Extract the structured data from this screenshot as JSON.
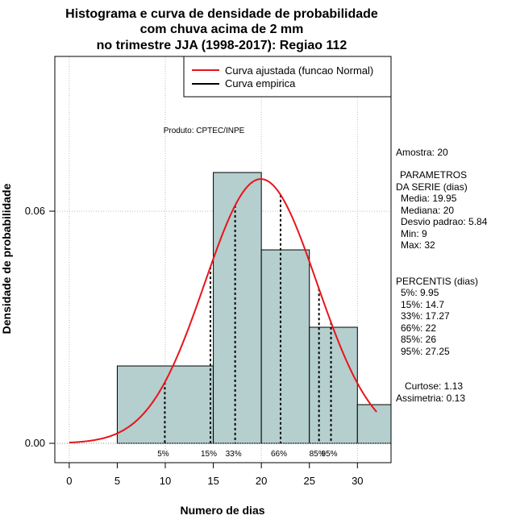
{
  "chart_data": {
    "type": "bar",
    "title_lines": [
      "Histograma e curva de densidade de probabilidade",
      "com chuva acima de 2 mm",
      "no trimestre JJA (1998-2017): Regiao 112"
    ],
    "xlabel": "Numero de dias",
    "ylabel": "Densidade de probabilidade",
    "xlim": [
      -1.5,
      33.5
    ],
    "ylim": [
      -0.005,
      0.1
    ],
    "x_ticks": [
      0,
      5,
      10,
      15,
      20,
      25,
      30
    ],
    "x_tick_labels": [
      "0",
      "5",
      "10",
      "15",
      "20",
      "25",
      "30"
    ],
    "y_ticks": [
      0.0,
      0.06
    ],
    "y_tick_labels": [
      "0.00",
      "0.06"
    ],
    "grid_y": [
      0.0,
      0.06,
      0.1
    ],
    "grid_x": [
      0,
      10,
      20,
      30
    ],
    "bins": [
      {
        "from": 5,
        "to": 15,
        "density": 0.02
      },
      {
        "from": 15,
        "to": 20,
        "density": 0.07
      },
      {
        "from": 20,
        "to": 25,
        "density": 0.05
      },
      {
        "from": 25,
        "to": 30,
        "density": 0.03
      },
      {
        "from": 30,
        "to": 35,
        "density": 0.01
      }
    ],
    "normal_curve": {
      "mean": 19.95,
      "sd": 5.84,
      "x_from": 0,
      "x_to": 32
    },
    "percentile_lines": [
      {
        "label": "5%",
        "x": 9.95
      },
      {
        "label": "15%",
        "x": 14.7
      },
      {
        "label": "33%",
        "x": 17.27
      },
      {
        "label": "66%",
        "x": 22
      },
      {
        "label": "85%",
        "x": 26
      },
      {
        "label": "95%",
        "x": 27.25
      }
    ],
    "legend": {
      "position": "top-right",
      "entries": [
        {
          "label": "Curva ajustada (funcao Normal)",
          "color": "#e8141a"
        },
        {
          "label": "Curva empirica",
          "color": "#000000"
        }
      ]
    },
    "annotation": "Produto: CPTEC/INPE",
    "colors": {
      "bar_fill": "#b5cece",
      "curve": "#e8141a",
      "grid": "#bdbdbd"
    }
  },
  "side_panel": {
    "amostra": "Amostra: 20",
    "parametros_title": "PARAMETROS",
    "parametros_subtitle": "DA SERIE (dias)",
    "media": "Media: 19.95",
    "mediana": "Mediana: 20",
    "desvio": "Desvio padrao: 5.84",
    "min": "Min: 9",
    "max": "Max: 32",
    "percentis_title": "PERCENTIS (dias)",
    "p5": "5%: 9.95",
    "p15": "15%: 14.7",
    "p33": "33%: 17.27",
    "p66": "66%: 22",
    "p85": "85%: 26",
    "p95": "95%: 27.25",
    "curtose": "Curtose: 1.13",
    "assimetria": "Assimetria: 0.13"
  }
}
